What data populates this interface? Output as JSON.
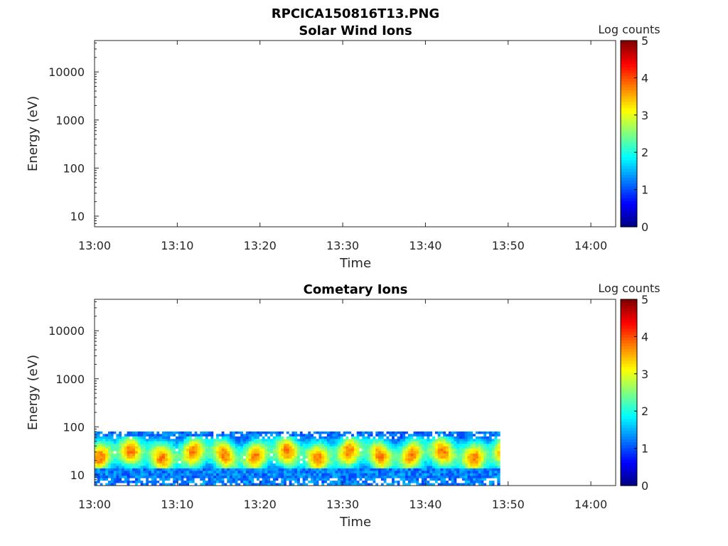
{
  "figure_title": "RPCICA150816T13.PNG",
  "colors": {
    "colormap": "jet",
    "axes_line": "#262626",
    "colorbar_frame": "#000000"
  },
  "chart_data": [
    {
      "type": "heatmap",
      "title": "Solar Wind Ions",
      "xlabel": "Time",
      "ylabel": "Energy (eV)",
      "y_scale": "log",
      "xlim": [
        "13:00",
        "14:03"
      ],
      "ylim": [
        6,
        45000
      ],
      "x_ticks": [
        "13:00",
        "13:10",
        "13:20",
        "13:30",
        "13:40",
        "13:50",
        "14:00"
      ],
      "y_ticks": [
        "10",
        "100",
        "1000",
        "10000"
      ],
      "colorbar": {
        "label": "Log counts",
        "ticks": [
          "0",
          "1",
          "2",
          "3",
          "4",
          "5"
        ],
        "range": [
          0,
          5
        ]
      },
      "data_extent": null,
      "grid": false
    },
    {
      "type": "heatmap",
      "title": "Cometary Ions",
      "xlabel": "Time",
      "ylabel": "Energy (eV)",
      "y_scale": "log",
      "xlim": [
        "13:00",
        "14:03"
      ],
      "ylim": [
        6,
        45000
      ],
      "x_ticks": [
        "13:00",
        "13:10",
        "13:20",
        "13:30",
        "13:40",
        "13:50",
        "14:00"
      ],
      "y_ticks": [
        "10",
        "100",
        "1000",
        "10000"
      ],
      "colorbar": {
        "label": "Log counts",
        "ticks": [
          "0",
          "1",
          "2",
          "3",
          "4",
          "5"
        ],
        "range": [
          0,
          5
        ]
      },
      "data_extent": {
        "time": [
          "13:00",
          "13:49"
        ],
        "energy_eV": [
          6,
          80
        ]
      },
      "grid": false
    }
  ]
}
